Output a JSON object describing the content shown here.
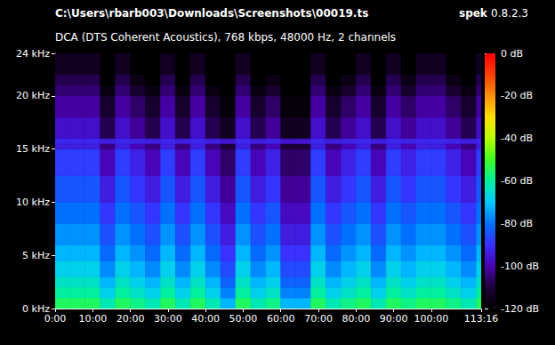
{
  "chart_data": {
    "type": "spectrogram",
    "title": "C:\\Users\\rbarb003\\Downloads\\Screenshots\\00019.ts",
    "subtitle": "DCA (DTS Coherent Acoustics), 768 kbps, 48000 Hz, 2 channels",
    "annotations": [
      "spek 0.8.2.3"
    ],
    "grid": false,
    "xlim": [
      0,
      113.2667
    ],
    "xticks": [
      {
        "value": 0,
        "label": "0:00"
      },
      {
        "value": 10,
        "label": "10:00"
      },
      {
        "value": 20,
        "label": "20:00"
      },
      {
        "value": 30,
        "label": "30:00"
      },
      {
        "value": 40,
        "label": "40:00"
      },
      {
        "value": 50,
        "label": "50:00"
      },
      {
        "value": 60,
        "label": "60:00"
      },
      {
        "value": 70,
        "label": "70:00"
      },
      {
        "value": 80,
        "label": "80:00"
      },
      {
        "value": 90,
        "label": "90:00"
      },
      {
        "value": 100,
        "label": "100:00"
      },
      {
        "value": 113.2667,
        "label": "113:16"
      }
    ],
    "ylim": [
      0,
      24
    ],
    "yticks": [
      {
        "value": 0,
        "label": "0 kHz"
      },
      {
        "value": 5,
        "label": "5 kHz"
      },
      {
        "value": 10,
        "label": "10 kHz"
      },
      {
        "value": 15,
        "label": "15 kHz"
      },
      {
        "value": 20,
        "label": "20 kHz"
      },
      {
        "value": 24,
        "label": "24 kHz"
      }
    ],
    "x_bins": [
      0,
      4,
      8,
      12,
      16,
      20,
      24,
      28,
      32,
      36,
      40,
      44,
      48,
      52,
      56,
      60,
      64,
      68,
      72,
      76,
      80,
      84,
      88,
      92,
      96,
      100,
      104,
      108,
      112,
      113.2667
    ],
    "y_bins": [
      0,
      1,
      2,
      3,
      4.5,
      6,
      8,
      10,
      12.5,
      15,
      15.5,
      16,
      18,
      20,
      21,
      22,
      24
    ],
    "cells": [
      [
        -55,
        -55,
        -55,
        -62,
        -55,
        -58,
        -62,
        -55,
        -62,
        -55,
        -62,
        -72,
        -55,
        -62,
        -58,
        -72,
        -72,
        -55,
        -62,
        -58,
        -55,
        -62,
        -55,
        -58,
        -55,
        -55,
        -58,
        -62,
        -55
      ],
      [
        -60,
        -60,
        -60,
        -68,
        -60,
        -64,
        -68,
        -60,
        -68,
        -60,
        -68,
        -78,
        -60,
        -68,
        -64,
        -78,
        -78,
        -60,
        -68,
        -64,
        -60,
        -68,
        -60,
        -64,
        -60,
        -60,
        -64,
        -68,
        -60
      ],
      [
        -64,
        -64,
        -64,
        -72,
        -64,
        -68,
        -72,
        -64,
        -72,
        -64,
        -72,
        -82,
        -64,
        -72,
        -68,
        -82,
        -82,
        -64,
        -72,
        -68,
        -64,
        -72,
        -64,
        -68,
        -64,
        -64,
        -68,
        -72,
        -64
      ],
      [
        -68,
        -68,
        -68,
        -77,
        -68,
        -72,
        -77,
        -68,
        -77,
        -68,
        -77,
        -86,
        -68,
        -77,
        -72,
        -86,
        -86,
        -68,
        -77,
        -72,
        -68,
        -77,
        -68,
        -72,
        -68,
        -68,
        -72,
        -77,
        -68
      ],
      [
        -72,
        -72,
        -72,
        -81,
        -72,
        -76,
        -81,
        -72,
        -81,
        -72,
        -81,
        -90,
        -72,
        -81,
        -76,
        -90,
        -90,
        -72,
        -81,
        -76,
        -72,
        -81,
        -72,
        -76,
        -72,
        -72,
        -76,
        -81,
        -72
      ],
      [
        -76,
        -76,
        -76,
        -85,
        -76,
        -80,
        -85,
        -76,
        -85,
        -76,
        -85,
        -94,
        -76,
        -85,
        -80,
        -94,
        -94,
        -76,
        -85,
        -80,
        -76,
        -85,
        -76,
        -80,
        -76,
        -76,
        -80,
        -85,
        -76
      ],
      [
        -80,
        -80,
        -80,
        -89,
        -80,
        -84,
        -89,
        -80,
        -89,
        -80,
        -89,
        -98,
        -80,
        -89,
        -84,
        -98,
        -98,
        -80,
        -89,
        -84,
        -80,
        -89,
        -80,
        -84,
        -80,
        -80,
        -84,
        -89,
        -80
      ],
      [
        -84,
        -84,
        -84,
        -94,
        -84,
        -89,
        -94,
        -84,
        -94,
        -84,
        -94,
        -102,
        -84,
        -94,
        -89,
        -102,
        -102,
        -84,
        -94,
        -89,
        -84,
        -94,
        -84,
        -89,
        -84,
        -84,
        -89,
        -94,
        -84
      ],
      [
        -88,
        -88,
        -88,
        -99,
        -88,
        -93,
        -99,
        -88,
        -99,
        -88,
        -99,
        -106,
        -88,
        -99,
        -93,
        -106,
        -106,
        -88,
        -99,
        -93,
        -88,
        -99,
        -88,
        -93,
        -88,
        -88,
        -93,
        -99,
        -88
      ],
      [
        -94,
        -94,
        -94,
        -104,
        -94,
        -99,
        -104,
        -94,
        -104,
        -94,
        -104,
        -110,
        -94,
        -104,
        -99,
        -110,
        -110,
        -94,
        -104,
        -99,
        -94,
        -104,
        -94,
        -99,
        -94,
        -94,
        -99,
        -104,
        -94
      ],
      [
        -92,
        -92,
        -92,
        -94,
        -92,
        -93,
        -94,
        -92,
        -94,
        -92,
        -94,
        -96,
        -92,
        -94,
        -93,
        -96,
        -96,
        -92,
        -94,
        -93,
        -92,
        -94,
        -92,
        -93,
        -92,
        -92,
        -93,
        -94,
        -92
      ],
      [
        -97,
        -97,
        -97,
        -108,
        -97,
        -102,
        -108,
        -97,
        -108,
        -97,
        -108,
        -114,
        -97,
        -108,
        -102,
        -114,
        -114,
        -97,
        -108,
        -102,
        -97,
        -108,
        -97,
        -102,
        -97,
        -97,
        -102,
        -108,
        -97
      ],
      [
        -101,
        -101,
        -101,
        -112,
        -101,
        -106,
        -112,
        -101,
        -112,
        -101,
        -112,
        -118,
        -101,
        -112,
        -106,
        -118,
        -118,
        -101,
        -112,
        -106,
        -101,
        -112,
        -101,
        -106,
        -101,
        -101,
        -106,
        -112,
        -101
      ],
      [
        -105,
        -105,
        -105,
        -117,
        -105,
        -112,
        -117,
        -105,
        -117,
        -105,
        -117,
        -120,
        -105,
        -117,
        -112,
        -120,
        -120,
        -105,
        -117,
        -112,
        -105,
        -117,
        -105,
        -112,
        -105,
        -105,
        -112,
        -117,
        -105
      ],
      [
        -108,
        -108,
        -108,
        -120,
        -108,
        -116,
        -120,
        -108,
        -120,
        -108,
        -120,
        -120,
        -108,
        -120,
        -116,
        -120,
        -120,
        -108,
        -120,
        -116,
        -108,
        -120,
        -108,
        -116,
        -108,
        -108,
        -116,
        -120,
        -108
      ],
      [
        -114,
        -114,
        -114,
        -120,
        -114,
        -120,
        -120,
        -114,
        -120,
        -114,
        -120,
        -120,
        -114,
        -120,
        -120,
        -120,
        -120,
        -114,
        -120,
        -120,
        -114,
        -120,
        -114,
        -120,
        -114,
        -114,
        -120,
        -120,
        -114
      ]
    ],
    "colorbar": {
      "range": [
        -120,
        0
      ],
      "ticks": [
        {
          "value": 0,
          "label": "0 dB"
        },
        {
          "value": -20,
          "label": "-20 dB"
        },
        {
          "value": -40,
          "label": "-40 dB"
        },
        {
          "value": -60,
          "label": "-60 dB"
        },
        {
          "value": -80,
          "label": "-80 dB"
        },
        {
          "value": -100,
          "label": "-100 dB"
        },
        {
          "value": -120,
          "label": "-120 dB"
        }
      ]
    }
  }
}
